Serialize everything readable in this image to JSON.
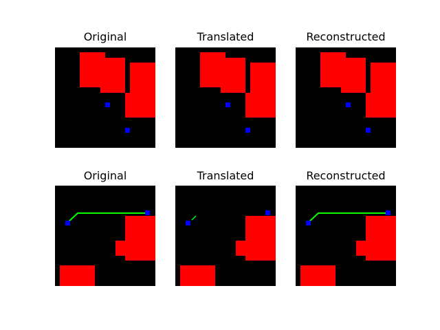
{
  "figure": {
    "titles": {
      "row1": [
        "Original",
        "Translated",
        "Reconstructed"
      ],
      "row2": [
        "Original",
        "Translated",
        "Reconstructed"
      ]
    }
  },
  "colors": {
    "background": "#000000",
    "obstacle": "#ff0000",
    "marker": "#0000ff",
    "path": "#00ff00"
  }
}
